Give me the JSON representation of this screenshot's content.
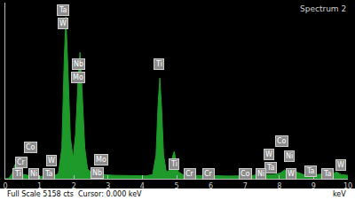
{
  "chart_data": {
    "type": "area",
    "title": "Spectrum 2",
    "x_label": "keV",
    "footer": "Full Scale 5158 cts  Cursor: 0.000 keV",
    "color": "#1e9a2a",
    "x": [
      0,
      0.1,
      0.2,
      0.28,
      0.35,
      0.45,
      0.55,
      0.65,
      0.8,
      1.0,
      1.2,
      1.4,
      1.55,
      1.65,
      1.72,
      1.77,
      1.82,
      1.9,
      1.98,
      2.05,
      2.12,
      2.18,
      2.24,
      2.32,
      2.4,
      2.5,
      2.6,
      2.8,
      3.0,
      3.2,
      3.5,
      3.8,
      4.1,
      4.3,
      4.4,
      4.46,
      4.51,
      4.56,
      4.62,
      4.7,
      4.8,
      4.88,
      4.93,
      4.98,
      5.05,
      5.2,
      5.41,
      5.5,
      5.7,
      5.95,
      6.1,
      6.5,
      6.9,
      7.0,
      7.2,
      7.47,
      7.6,
      7.8,
      7.9,
      8.05,
      8.15,
      8.25,
      8.4,
      8.5,
      8.7,
      9.0,
      9.35,
      9.5,
      9.67,
      9.8,
      10
    ],
    "values": [
      0,
      20,
      150,
      420,
      250,
      150,
      120,
      100,
      80,
      70,
      70,
      80,
      150,
      900,
      3500,
      4750,
      3400,
      1200,
      600,
      1300,
      2800,
      3700,
      2600,
      900,
      300,
      180,
      140,
      120,
      110,
      100,
      90,
      85,
      85,
      120,
      700,
      2200,
      2950,
      2100,
      700,
      200,
      250,
      650,
      800,
      550,
      200,
      110,
      180,
      100,
      90,
      140,
      90,
      80,
      90,
      100,
      90,
      150,
      120,
      120,
      130,
      180,
      260,
      180,
      280,
      200,
      120,
      110,
      150,
      110,
      200,
      120,
      100
    ],
    "xlim": [
      0,
      10
    ],
    "xticks": [
      0,
      1,
      2,
      3,
      4,
      5,
      6,
      7,
      8,
      9,
      10
    ],
    "ylim": [
      0,
      5158
    ],
    "tick_labels": "x",
    "grid": false,
    "annotations": [
      {
        "text": "Ta",
        "x": 1.69,
        "y": 4926
      },
      {
        "text": "W",
        "x": 1.69,
        "y": 4539
      },
      {
        "text": "Nb",
        "x": 2.13,
        "y": 3353
      },
      {
        "text": "Mo",
        "x": 2.13,
        "y": 2966
      },
      {
        "text": "Ti",
        "x": 4.48,
        "y": 3353
      },
      {
        "text": "Co",
        "x": 0.75,
        "y": 930
      },
      {
        "text": "Cr",
        "x": 0.47,
        "y": 490
      },
      {
        "text": "Ti",
        "x": 0.36,
        "y": 150
      },
      {
        "text": "Ni",
        "x": 0.83,
        "y": 150
      },
      {
        "text": "W",
        "x": 1.35,
        "y": 540
      },
      {
        "text": "Ta",
        "x": 1.28,
        "y": 150
      },
      {
        "text": "Mo",
        "x": 2.79,
        "y": 570
      },
      {
        "text": "Nb",
        "x": 2.68,
        "y": 180
      },
      {
        "text": "Ti",
        "x": 4.92,
        "y": 440
      },
      {
        "text": "Cr",
        "x": 5.38,
        "y": 150
      },
      {
        "text": "Cr",
        "x": 5.92,
        "y": 150
      },
      {
        "text": "Co",
        "x": 8.07,
        "y": 1100
      },
      {
        "text": "W",
        "x": 7.7,
        "y": 720
      },
      {
        "text": "Ni",
        "x": 8.3,
        "y": 650
      },
      {
        "text": "Ta",
        "x": 7.75,
        "y": 330
      },
      {
        "text": "W",
        "x": 9.8,
        "y": 400
      },
      {
        "text": "Ta",
        "x": 8.9,
        "y": 230
      },
      {
        "text": "Co",
        "x": 7.0,
        "y": 150
      },
      {
        "text": "Ni",
        "x": 7.45,
        "y": 150
      },
      {
        "text": "W",
        "x": 8.35,
        "y": 150
      },
      {
        "text": "Ta",
        "x": 9.4,
        "y": 150
      }
    ]
  }
}
